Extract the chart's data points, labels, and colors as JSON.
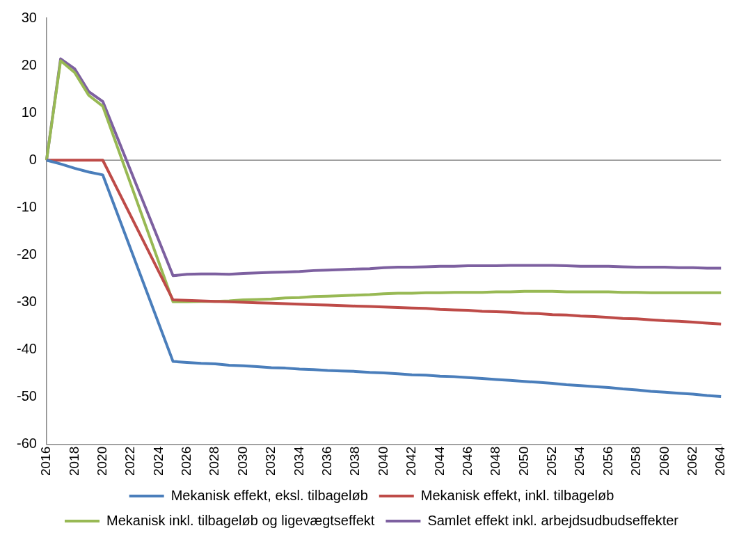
{
  "chart_data": {
    "type": "line",
    "categories": [
      "2016",
      null,
      "2018",
      null,
      "2020",
      null,
      "2022",
      null,
      "2024",
      null,
      "2026",
      null,
      "2028",
      null,
      "2030",
      null,
      "2032",
      null,
      "2034",
      null,
      "2036",
      null,
      "2038",
      null,
      "2040",
      null,
      "2042",
      null,
      "2044",
      null,
      "2046",
      null,
      "2048",
      null,
      "2050",
      null,
      "2052",
      null,
      "2054",
      null,
      "2056",
      null,
      "2058",
      null,
      "2060",
      null,
      "2062",
      null,
      "2064"
    ],
    "ylim": [
      -60,
      30
    ],
    "yticks": [
      -60,
      -50,
      -40,
      -30,
      -20,
      -10,
      0,
      10,
      20,
      30
    ],
    "grid": false,
    "ref_lines": [
      {
        "axis": "y",
        "value": 0,
        "color": "#888888"
      }
    ],
    "legend": "bottom",
    "marker": "none",
    "line_style": "solid",
    "series": [
      {
        "name": "Mekanisk effekt, eksl. tilbageløb",
        "color": "#4a7ebb",
        "values": [
          0,
          -0.8,
          -1.7,
          -2.5,
          -3.1,
          null,
          null,
          null,
          null,
          -42.5,
          -42.7,
          -42.9,
          -43.0,
          -43.3,
          -43.4,
          -43.6,
          -43.8,
          -43.9,
          -44.1,
          -44.2,
          -44.4,
          -44.5,
          -44.6,
          -44.8,
          -44.9,
          -45.1,
          -45.3,
          -45.4,
          -45.6,
          -45.7,
          -45.9,
          -46.1,
          -46.3,
          -46.5,
          -46.7,
          -46.9,
          -47.1,
          -47.4,
          -47.6,
          -47.8,
          -48.0,
          -48.3,
          -48.5,
          -48.8,
          -49.0,
          -49.2,
          -49.4,
          -49.7,
          -49.9
        ]
      },
      {
        "name": "Mekanisk effekt, inkl. tilbageløb",
        "color": "#be4b48",
        "values": [
          0,
          0,
          0,
          0,
          0,
          null,
          null,
          null,
          null,
          -29.5,
          -29.6,
          -29.7,
          -29.8,
          -29.9,
          -30.0,
          -30.1,
          -30.2,
          -30.3,
          -30.4,
          -30.5,
          -30.6,
          -30.7,
          -30.8,
          -30.9,
          -31.0,
          -31.1,
          -31.2,
          -31.3,
          -31.5,
          -31.6,
          -31.7,
          -31.9,
          -32.0,
          -32.1,
          -32.3,
          -32.4,
          -32.6,
          -32.7,
          -32.9,
          -33.0,
          -33.2,
          -33.4,
          -33.5,
          -33.7,
          -33.9,
          -34.0,
          -34.2,
          -34.4,
          -34.6
        ]
      },
      {
        "name": "Mekanisk inkl. tilbageløb og ligevægtseffekt",
        "color": "#98b954",
        "values": [
          0,
          21.0,
          18.5,
          13.7,
          11.4,
          null,
          null,
          null,
          null,
          -29.9,
          -29.9,
          -29.8,
          -29.8,
          -29.7,
          -29.5,
          -29.4,
          -29.3,
          -29.1,
          -29.0,
          -28.8,
          -28.7,
          -28.6,
          -28.5,
          -28.4,
          -28.2,
          -28.1,
          -28.1,
          -28.0,
          -28.0,
          -27.9,
          -27.9,
          -27.9,
          -27.8,
          -27.8,
          -27.7,
          -27.7,
          -27.7,
          -27.8,
          -27.8,
          -27.8,
          -27.8,
          -27.9,
          -27.9,
          -28.0,
          -28.0,
          -28.0,
          -28.0,
          -28.0,
          -28.0
        ]
      },
      {
        "name": "Samlet effekt inkl. arbejdsudbudseffekter",
        "color": "#7d60a0",
        "values": [
          0,
          21.4,
          19.3,
          14.5,
          12.4,
          null,
          null,
          null,
          null,
          -24.4,
          -24.1,
          -24.0,
          -24.0,
          -24.1,
          -23.9,
          -23.8,
          -23.7,
          -23.6,
          -23.5,
          -23.3,
          -23.2,
          -23.1,
          -23.0,
          -22.9,
          -22.7,
          -22.6,
          -22.6,
          -22.5,
          -22.4,
          -22.4,
          -22.3,
          -22.3,
          -22.3,
          -22.2,
          -22.2,
          -22.2,
          -22.2,
          -22.3,
          -22.4,
          -22.4,
          -22.4,
          -22.5,
          -22.6,
          -22.6,
          -22.6,
          -22.7,
          -22.7,
          -22.8,
          -22.8
        ]
      }
    ]
  }
}
